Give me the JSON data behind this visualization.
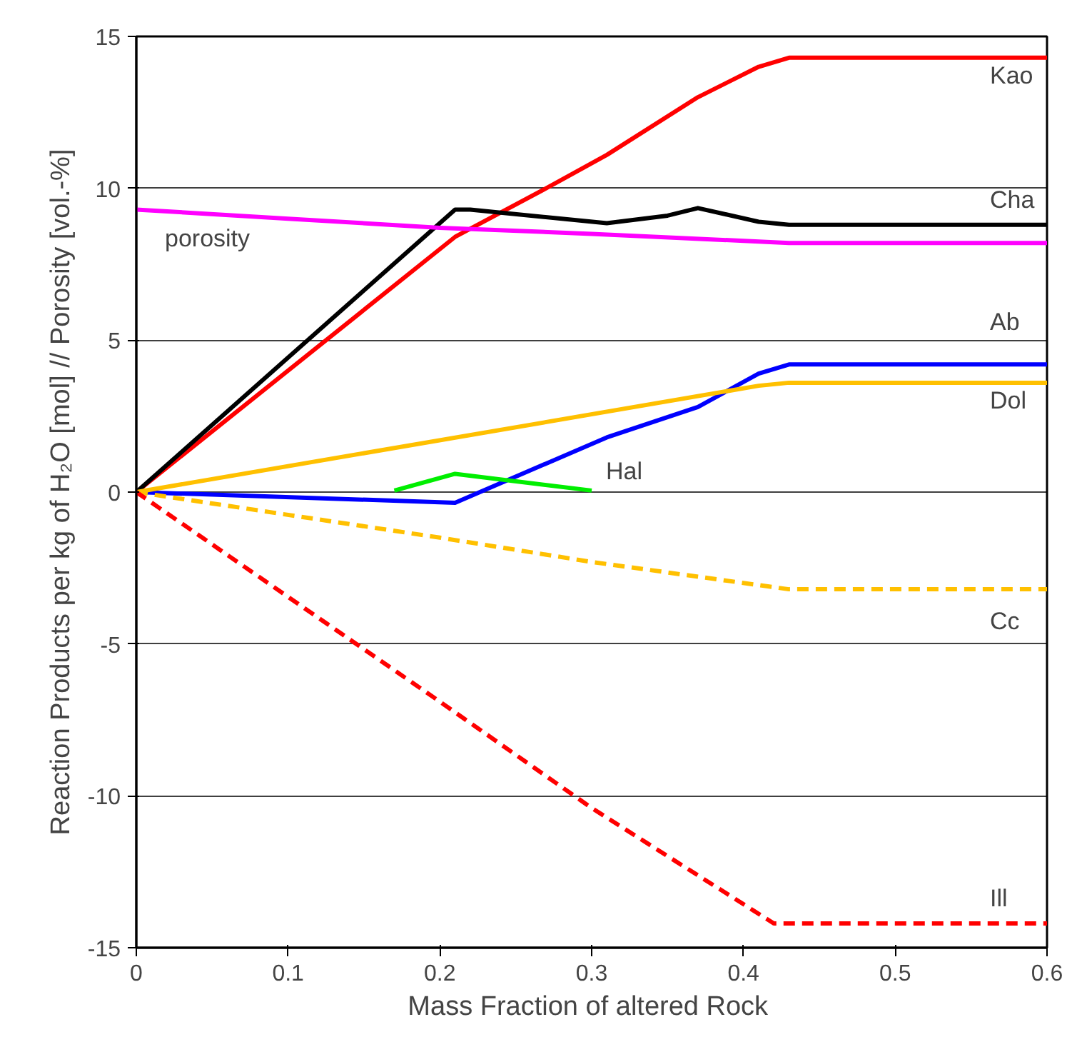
{
  "chart_data": {
    "type": "line",
    "xlabel": "Mass Fraction of altered  Rock",
    "ylabel": "Reaction Products per kg of H₂O [mol] // Porosity [vol.-%]",
    "xlim": [
      0,
      0.6
    ],
    "ylim": [
      -15,
      15
    ],
    "xticks": [
      0,
      0.1,
      0.2,
      0.3,
      0.4,
      0.5,
      0.6
    ],
    "yticks": [
      -15,
      -10,
      -5,
      0,
      5,
      10,
      15
    ],
    "grid": "y",
    "legend": false,
    "marker": "none",
    "series": [
      {
        "name": "Kao",
        "color": "#ff0000",
        "x": [
          0,
          0.21,
          0.27,
          0.31,
          0.37,
          0.41,
          0.43,
          0.6
        ],
        "values": [
          0,
          8.4,
          10,
          11.1,
          13,
          14,
          14.3,
          14.3
        ]
      },
      {
        "name": "Cha",
        "color": "#000000",
        "x": [
          0,
          0.21,
          0.22,
          0.31,
          0.35,
          0.37,
          0.41,
          0.43,
          0.6
        ],
        "values": [
          0,
          9.3,
          9.3,
          8.85,
          9.1,
          9.35,
          8.9,
          8.8,
          8.8
        ]
      },
      {
        "name": "porosity",
        "color": "#ff00ff",
        "x": [
          0,
          0.1,
          0.2,
          0.3,
          0.43,
          0.6
        ],
        "values": [
          9.3,
          9.0,
          8.7,
          8.5,
          8.2,
          8.2
        ]
      },
      {
        "name": "Ab",
        "color": "#0000ff",
        "x": [
          0,
          0.21,
          0.31,
          0.37,
          0.41,
          0.43,
          0.6
        ],
        "values": [
          0,
          -0.35,
          1.8,
          2.8,
          3.9,
          4.2,
          4.2
        ]
      },
      {
        "name": "Dol",
        "color": "#ffc000",
        "x": [
          0,
          0.41,
          0.43,
          0.6
        ],
        "values": [
          0,
          3.5,
          3.6,
          3.6
        ]
      },
      {
        "name": "Hal",
        "color": "#00ee00",
        "x": [
          0.17,
          0.21,
          0.3
        ],
        "values": [
          0.05,
          0.6,
          0.05
        ]
      },
      {
        "name": "Cc",
        "color": "#ffc000",
        "line_style": "dashed",
        "x": [
          0,
          0.2,
          0.3,
          0.43,
          0.6
        ],
        "values": [
          0,
          -1.5,
          -2.3,
          -3.2,
          -3.2
        ]
      },
      {
        "name": "Ill",
        "color": "#ff0000",
        "line_style": "dashed",
        "x": [
          0,
          0.2,
          0.3,
          0.42,
          0.6
        ],
        "values": [
          0,
          -6.9,
          -10.4,
          -14.2,
          -14.2
        ]
      }
    ]
  }
}
